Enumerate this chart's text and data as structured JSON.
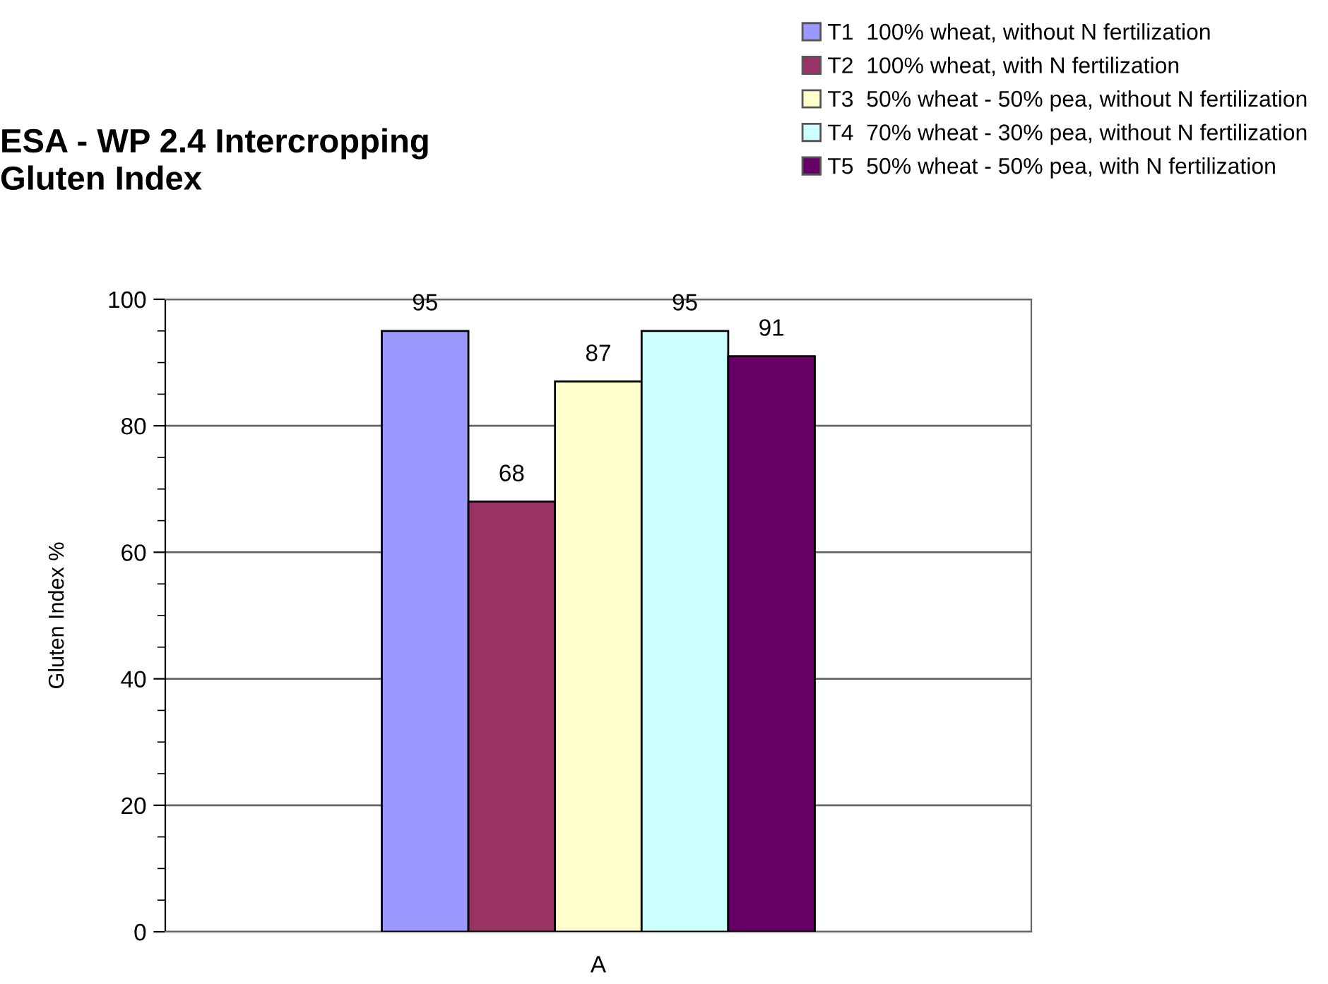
{
  "chart_data": {
    "type": "bar",
    "title": "ESA - WP 2.4 Intercropping\nGluten Index",
    "ylabel": "Gluten Index %",
    "categories": [
      "A"
    ],
    "series": [
      {
        "name": "T1  100% wheat, without N fertilization",
        "color": "#9999ff",
        "values": [
          95
        ]
      },
      {
        "name": "T2  100% wheat, with N fertilization",
        "color": "#993366",
        "values": [
          68
        ]
      },
      {
        "name": "T3  50% wheat - 50% pea, without N fertilization",
        "color": "#ffffcc",
        "values": [
          87
        ]
      },
      {
        "name": "T4  70% wheat - 30% pea, without N fertilization",
        "color": "#ccffff",
        "values": [
          95
        ]
      },
      {
        "name": "T5  50% wheat - 50% pea, with N fertilization",
        "color": "#660066",
        "values": [
          91
        ]
      }
    ],
    "ylim": [
      0,
      100
    ],
    "yticks": [
      0,
      20,
      40,
      60,
      80,
      100
    ],
    "grid": "y",
    "legend": "top right",
    "data_labels": true
  }
}
